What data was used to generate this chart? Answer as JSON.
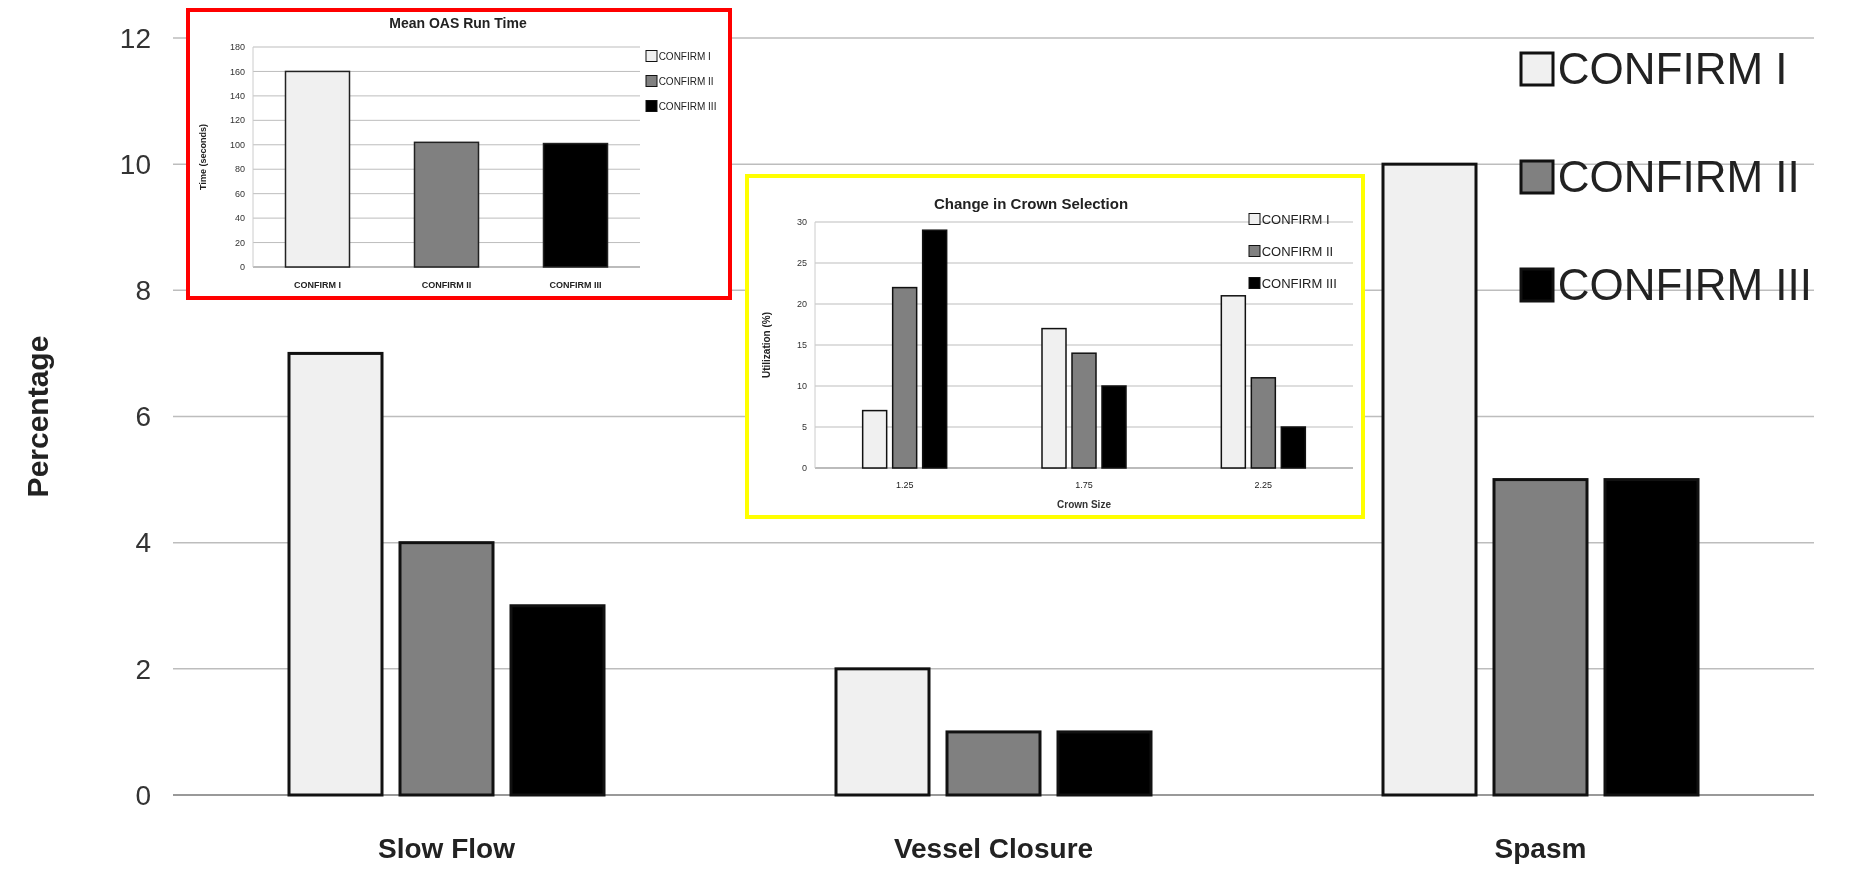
{
  "chart_data": [
    {
      "type": "bar",
      "ylabel": "Percentage",
      "categories": [
        "Slow Flow",
        "Vessel Closure",
        "Spasm"
      ],
      "series": [
        {
          "name": "CONFIRM I",
          "color": "#f0f0f0",
          "values": [
            7,
            2,
            10
          ]
        },
        {
          "name": "CONFIRM II",
          "color": "#808080",
          "values": [
            4,
            1,
            5
          ]
        },
        {
          "name": "CONFIRM III",
          "color": "#000000",
          "values": [
            3,
            1,
            5
          ]
        }
      ],
      "ylim": [
        0,
        12
      ],
      "yticks": [
        0,
        2,
        4,
        6,
        8,
        10,
        12
      ],
      "grid": "y",
      "legend": "top right"
    },
    {
      "type": "bar",
      "title": "Mean OAS Run Time",
      "ylabel": "Time (seconds)",
      "categories": [
        "CONFIRM I",
        "CONFIRM II",
        "CONFIRM III"
      ],
      "stacked": true,
      "series": [
        {
          "name": "CONFIRM I",
          "color": "#f0f0f0",
          "values": [
            160,
            null,
            null
          ]
        },
        {
          "name": "CONFIRM II",
          "color": "#808080",
          "values": [
            null,
            102,
            null
          ]
        },
        {
          "name": "CONFIRM III",
          "color": "#000000",
          "values": [
            null,
            null,
            101
          ]
        }
      ],
      "ylim": [
        0,
        180
      ],
      "yticks": [
        0,
        20,
        40,
        60,
        80,
        100,
        120,
        140,
        160,
        180
      ],
      "grid": "y",
      "legend": "top right"
    },
    {
      "type": "bar",
      "title": "Change in Crown Selection",
      "xlabel": "Crown Size",
      "ylabel": "Utilization (%)",
      "categories": [
        "1.25",
        "1.75",
        "2.25"
      ],
      "series": [
        {
          "name": "CONFIRM I",
          "color": "#f0f0f0",
          "values": [
            7,
            17,
            21
          ]
        },
        {
          "name": "CONFIRM II",
          "color": "#808080",
          "values": [
            22,
            14,
            11
          ]
        },
        {
          "name": "CONFIRM III",
          "color": "#000000",
          "values": [
            29,
            10,
            5
          ]
        }
      ],
      "ylim": [
        0,
        30
      ],
      "yticks": [
        0,
        5,
        10,
        15,
        20,
        25,
        30
      ],
      "grid": "y",
      "legend": "top right"
    }
  ]
}
